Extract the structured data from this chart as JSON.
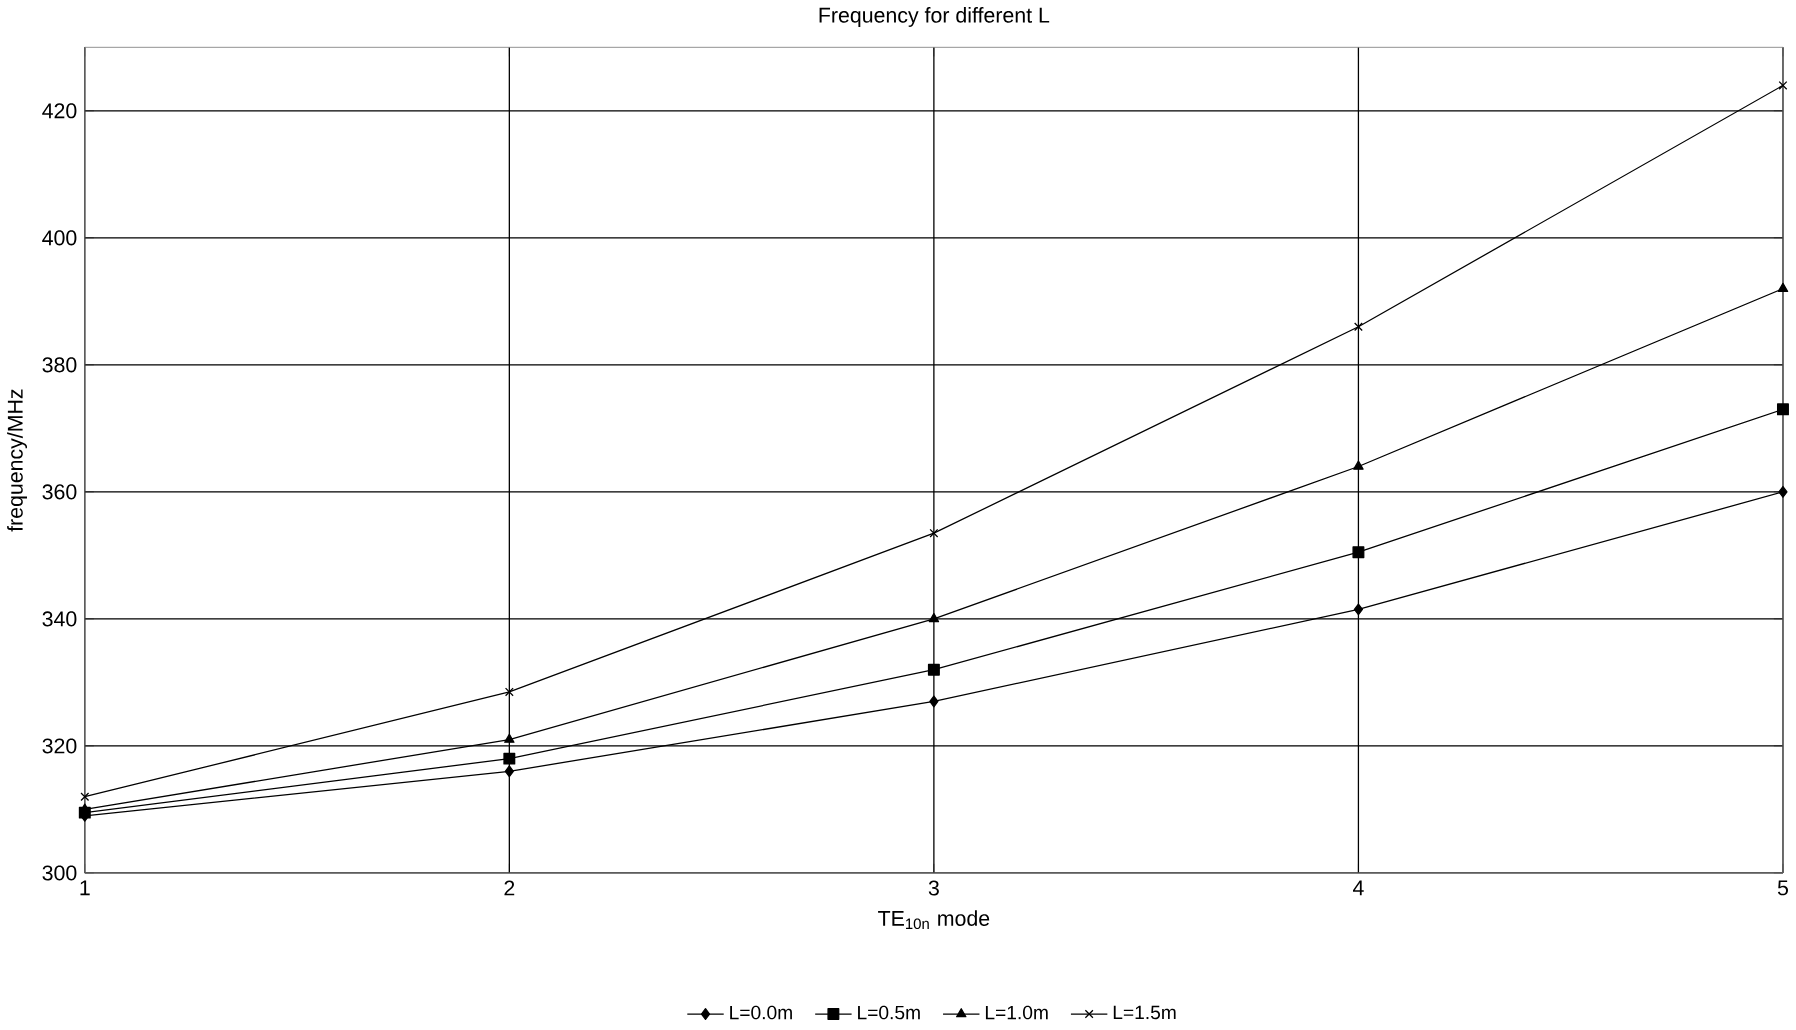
{
  "chart_data": {
    "type": "line",
    "title": "Frequency for different L",
    "xlabel": "TE$_{10n}$ mode",
    "ylabel": "frequency/MHz",
    "x": [
      1,
      2,
      3,
      4,
      5
    ],
    "xlim": [
      1,
      5
    ],
    "xticks": [
      1,
      2,
      3,
      4,
      5
    ],
    "ylim": [
      300,
      430
    ],
    "yticks": [
      300,
      320,
      340,
      360,
      380,
      400,
      420
    ],
    "grid": true,
    "legend": "bottom",
    "series": [
      {
        "name": "L=0.0m",
        "color": "#000000",
        "marker": "diamond",
        "values": [
          309,
          316,
          327,
          341.5,
          360
        ]
      },
      {
        "name": "L=0.5m",
        "color": "#000000",
        "marker": "square",
        "values": [
          309.5,
          318,
          332,
          350.5,
          373
        ]
      },
      {
        "name": "L=1.0m",
        "color": "#000000",
        "marker": "triangle",
        "values": [
          310,
          321,
          340,
          364,
          392
        ]
      },
      {
        "name": "L=1.5m",
        "color": "#000000",
        "marker": "cross",
        "values": [
          312,
          328.5,
          353.5,
          386,
          424
        ]
      }
    ]
  }
}
